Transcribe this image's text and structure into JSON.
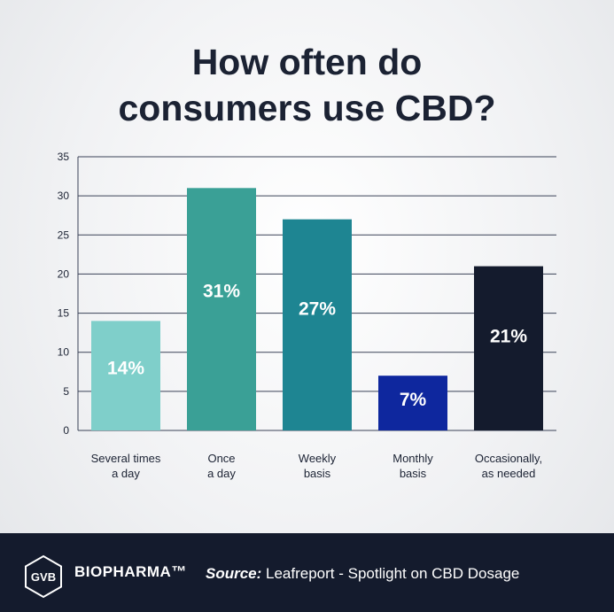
{
  "chart_data": {
    "type": "bar",
    "title_lines": [
      "How often do",
      "consumers use CBD?"
    ],
    "categories": [
      [
        "Several times",
        "a day"
      ],
      [
        "Once",
        "a day"
      ],
      [
        "Weekly",
        "basis"
      ],
      [
        "Monthly",
        "basis"
      ],
      [
        "Occasionally,",
        "as needed"
      ]
    ],
    "values": [
      14,
      31,
      27,
      7,
      21
    ],
    "data_labels": [
      "14%",
      "31%",
      "27%",
      "7%",
      "21%"
    ],
    "colors": [
      "#7fcfca",
      "#3aa096",
      "#1e8592",
      "#0e279e",
      "#141b2d"
    ],
    "ylim": [
      0,
      35
    ],
    "yticks": [
      0,
      5,
      10,
      15,
      20,
      25,
      30,
      35
    ],
    "grid": true
  },
  "footer": {
    "logo_text": "GVB",
    "brand": "BIOPHARMA™",
    "source_label": "Source:",
    "source_text": " Leafreport - Spotlight on CBD Dosage"
  }
}
